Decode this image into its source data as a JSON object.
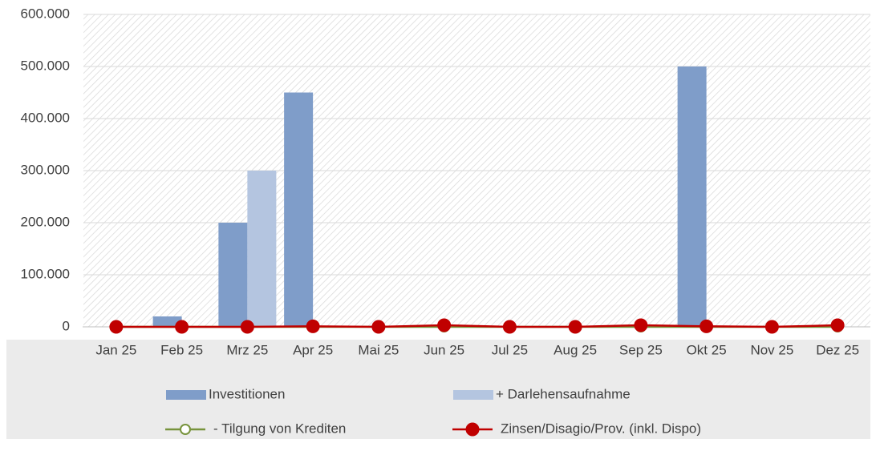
{
  "chart_data": {
    "type": "bar",
    "categories": [
      "Jan 25",
      "Feb 25",
      "Mrz 25",
      "Apr 25",
      "Mai 25",
      "Jun 25",
      "Jul 25",
      "Aug 25",
      "Sep 25",
      "Okt 25",
      "Nov 25",
      "Dez 25"
    ],
    "series": [
      {
        "name": "Investitionen",
        "type": "bar",
        "color": "#7f9dc9",
        "values": [
          0,
          20000,
          200000,
          450000,
          0,
          0,
          0,
          0,
          0,
          500000,
          0,
          0
        ]
      },
      {
        "name": "+ Darlehensaufnahme",
        "type": "bar",
        "color": "#b4c5e0",
        "values": [
          0,
          0,
          300000,
          0,
          0,
          0,
          0,
          0,
          0,
          0,
          0,
          0
        ]
      },
      {
        "name": "- Tilgung von Krediten",
        "type": "line",
        "color": "#77933c",
        "values": [
          0,
          0,
          0,
          0,
          0,
          0,
          0,
          0,
          0,
          0,
          0,
          0
        ]
      },
      {
        "name": "Zinsen/Disagio/Prov. (inkl. Dispo)",
        "type": "line",
        "color": "#c00000",
        "values": [
          0,
          0,
          0,
          1000,
          0,
          3000,
          0,
          0,
          3000,
          1000,
          0,
          3000
        ]
      }
    ],
    "ylim": [
      0,
      600000
    ],
    "yticks": [
      0,
      {
        "value": 100000,
        "label": "100.000"
      },
      {
        "value": 200000,
        "label": "200.000"
      },
      {
        "value": 300000,
        "label": "300.000"
      },
      {
        "value": 400000,
        "label": "400.000"
      },
      {
        "value": 500000,
        "label": "500.000"
      },
      {
        "value": 600000,
        "label": "600.000"
      }
    ],
    "grid": true
  }
}
